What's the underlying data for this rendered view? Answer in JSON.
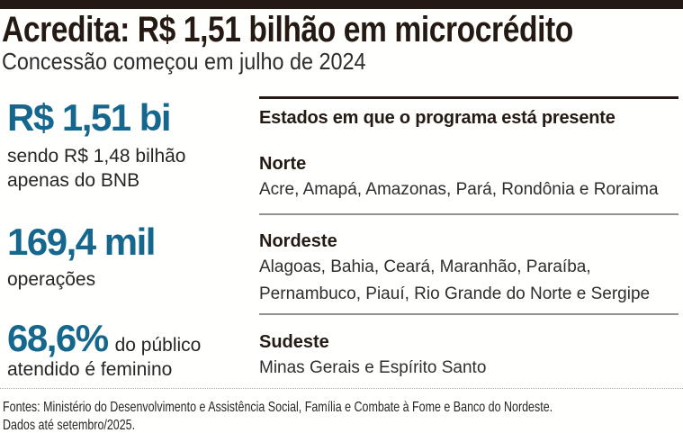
{
  "header": {
    "title": "Acredita: R$ 1,51 bilhão em microcrédito",
    "subtitle": "Concessão começou em julho de 2024"
  },
  "chart_data": {
    "type": "table",
    "title": "Acredita: R$ 1,51 bilhão em microcrédito",
    "subtitle": "Concessão começou em julho de 2024",
    "key_figures": [
      {
        "value": "R$ 1,51 bi",
        "label": "sendo R$ 1,48 bilhão apenas do BNB"
      },
      {
        "value": "169,4 mil",
        "label": "operações"
      },
      {
        "value": "68,6%",
        "label": "do público atendido é feminino"
      }
    ],
    "regions": [
      {
        "name": "Norte",
        "states": [
          "Acre",
          "Amapá",
          "Amazonas",
          "Pará",
          "Rondônia",
          "Roraima"
        ]
      },
      {
        "name": "Nordeste",
        "states": [
          "Alagoas",
          "Bahia",
          "Ceará",
          "Maranhão",
          "Paraíba",
          "Pernambuco",
          "Piauí",
          "Rio Grande do Norte",
          "Sergipe"
        ]
      },
      {
        "name": "Sudeste",
        "states": [
          "Minas Gerais",
          "Espírito Santo"
        ]
      }
    ]
  },
  "stats": [
    {
      "value": "R$ 1,51 bi",
      "label": "sendo R$ 1,48 bilhão\napenas do BNB"
    },
    {
      "value": "169,4 mil",
      "label": "operações"
    },
    {
      "value": "68,6%",
      "label_inline": "do público\natendido é feminino"
    }
  ],
  "states_panel": {
    "heading": "Estados em que o programa está presente",
    "regions": [
      {
        "name": "Norte",
        "states": "Acre, Amapá, Amazonas, Pará, Rondônia e Roraima"
      },
      {
        "name": "Nordeste",
        "states": "Alagoas, Bahia, Ceará, Maranhão, Paraíba, Pernambuco, Piauí, Rio Grande do Norte e Sergipe"
      },
      {
        "name": "Sudeste",
        "states": "Minas Gerais e Espírito Santo"
      }
    ]
  },
  "footer": {
    "sources": "Fontes: Ministério do Desenvolvimento e Assistência Social, Família e Combate à Fome e Banco do Nordeste.",
    "data_note": "Dados até setembro/2025."
  },
  "colors": {
    "accent_blue": "#15678d",
    "ink": "#241a13",
    "divider_gray": "#929292"
  }
}
